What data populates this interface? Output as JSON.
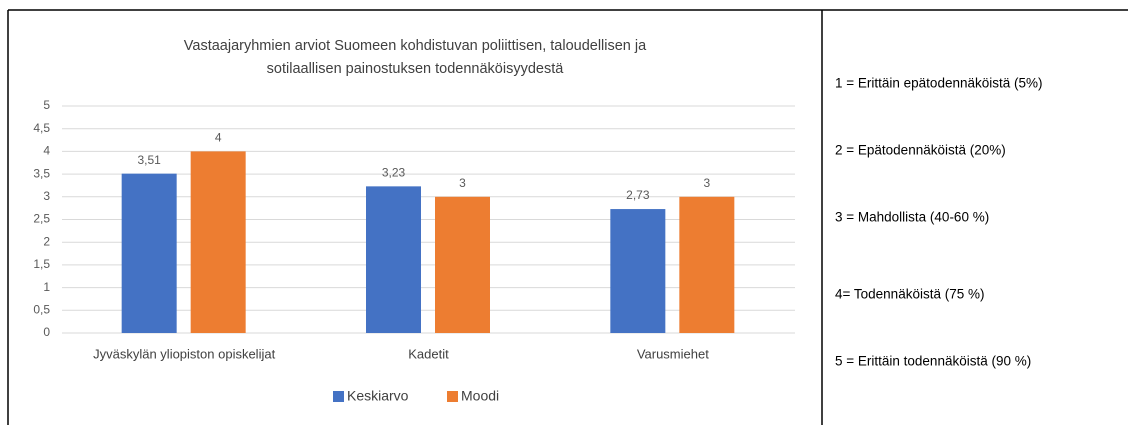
{
  "chart_data": {
    "type": "bar",
    "title": [
      "Vastaajaryhmien arviot Suomeen kohdistuvan poliittisen, taloudellisen ja",
      "sotilaallisen painostuksen  todennäköisyydestä"
    ],
    "categories": [
      "Jyväskylän yliopiston opiskelijat",
      "Kadetit",
      "Varusmiehet"
    ],
    "series": [
      {
        "name": "Keskiarvo",
        "color": "#4472c4",
        "values": [
          3.51,
          3.23,
          2.73
        ],
        "value_labels": [
          "3,51",
          "3,23",
          "2,73"
        ]
      },
      {
        "name": "Moodi",
        "color": "#ed7d31",
        "values": [
          4,
          3,
          3
        ]
      }
    ],
    "ylim": [
      0,
      5
    ],
    "yticks": [
      0,
      {
        "value": 0.5,
        "label": "0,5"
      },
      1,
      {
        "value": 1.5,
        "label": "1,5"
      },
      2,
      {
        "value": 2.5,
        "label": "2,5"
      },
      3,
      {
        "value": 3.5,
        "label": "3,5"
      },
      4,
      {
        "value": 4.5,
        "label": "4,5"
      },
      5
    ],
    "grid": true,
    "legend": "bottom",
    "annotations": [
      "1 = Erittäin epätodennäköistä (5%)",
      "2 = Epätodennäköistä (20%)",
      "3 = Mahdollista (40-60 %)",
      "4= Todennäköistä (75 %)",
      "5 = Erittäin todennäköistä (90 %)"
    ]
  }
}
